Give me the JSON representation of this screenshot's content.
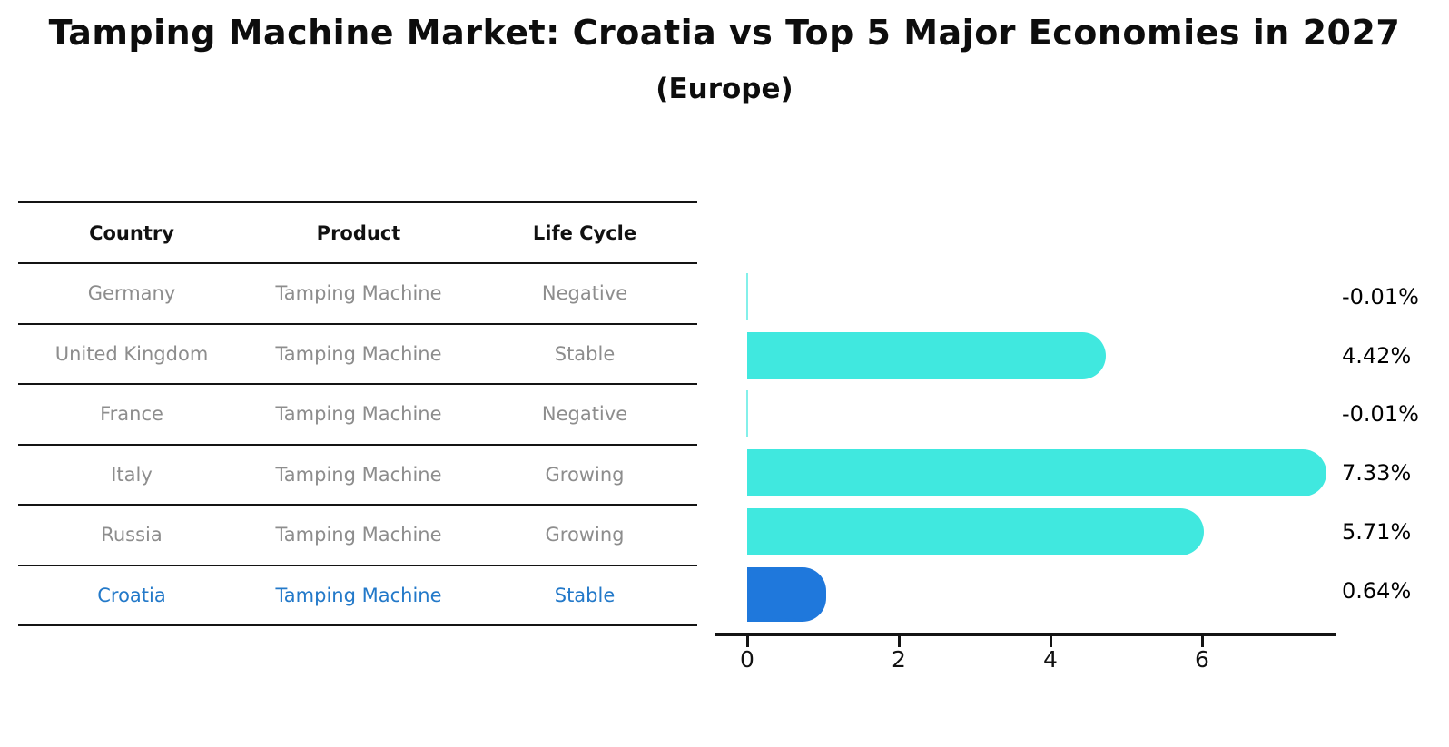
{
  "title": "Tamping Machine Market: Croatia vs Top 5 Major Economies in 2027",
  "subtitle": "(Europe)",
  "table": {
    "headers": [
      "Country",
      "Product",
      "Life Cycle"
    ],
    "rows": [
      {
        "country": "Germany",
        "product": "Tamping Machine",
        "life_cycle": "Negative",
        "highlight": false
      },
      {
        "country": "United Kingdom",
        "product": "Tamping Machine",
        "life_cycle": "Stable",
        "highlight": false
      },
      {
        "country": "France",
        "product": "Tamping Machine",
        "life_cycle": "Negative",
        "highlight": false
      },
      {
        "country": "Italy",
        "product": "Tamping Machine",
        "life_cycle": "Growing",
        "highlight": false
      },
      {
        "country": "Russia",
        "product": "Tamping Machine",
        "life_cycle": "Growing",
        "highlight": false
      },
      {
        "country": "Croatia",
        "product": "Tamping Machine",
        "life_cycle": "Stable",
        "highlight": true
      }
    ]
  },
  "chart_data": {
    "type": "bar",
    "orientation": "horizontal",
    "categories": [
      "Germany",
      "United Kingdom",
      "France",
      "Italy",
      "Russia",
      "Croatia"
    ],
    "values": [
      -0.01,
      4.42,
      -0.01,
      7.33,
      5.71,
      0.64
    ],
    "value_labels": [
      "-0.01%",
      "4.42%",
      "-0.01%",
      "7.33%",
      "5.71%",
      "0.64%"
    ],
    "x_ticks": [
      0,
      2,
      4,
      6
    ],
    "xlim": [
      -0.43,
      7.75
    ],
    "grid": false,
    "legend": false,
    "bar_color": "#40E8DF",
    "highlight_index": 5,
    "highlight_bar_color": "#1F78DC",
    "highlight_text_color": "#2379C9",
    "axis_color": "#141414"
  }
}
